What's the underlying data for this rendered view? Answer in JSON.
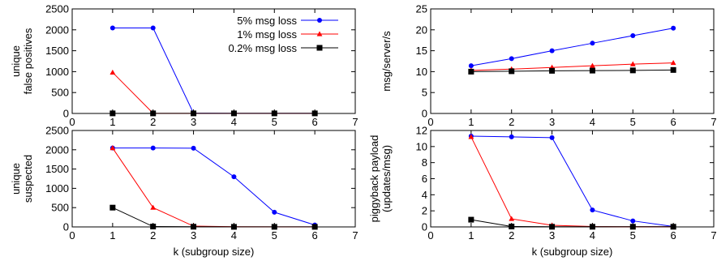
{
  "chart_data": [
    {
      "type": "line",
      "ylabel": [
        "unique",
        "false positives"
      ],
      "xlim": [
        0,
        7
      ],
      "ylim": [
        0,
        2500
      ],
      "xticks": [
        "0",
        "1",
        "2",
        "3",
        "4",
        "5",
        "6",
        "7"
      ],
      "yticks": [
        "0",
        "500",
        "1000",
        "1500",
        "2000",
        "2500"
      ],
      "x": [
        1,
        2,
        3,
        4,
        5,
        6
      ],
      "legend": {
        "placement": "top-right"
      },
      "series": [
        {
          "name": "5% msg loss",
          "color": "#0000ff",
          "marker": "circle",
          "values": [
            2045,
            2045,
            5,
            2,
            2,
            2
          ]
        },
        {
          "name": "1% msg loss",
          "color": "#ff0000",
          "marker": "triangle",
          "values": [
            980,
            5,
            2,
            2,
            2,
            2
          ]
        },
        {
          "name": "0.2% msg loss",
          "color": "#000000",
          "marker": "square",
          "values": [
            2,
            2,
            2,
            2,
            2,
            2
          ]
        }
      ]
    },
    {
      "type": "line",
      "ylabel": [
        "msg/server/s"
      ],
      "xlim": [
        0,
        7
      ],
      "ylim": [
        0,
        25
      ],
      "xticks": [
        "0",
        "1",
        "2",
        "3",
        "4",
        "5",
        "6",
        "7"
      ],
      "yticks": [
        "0",
        "5",
        "10",
        "15",
        "20",
        "25"
      ],
      "x": [
        1,
        2,
        3,
        4,
        5,
        6
      ],
      "series": [
        {
          "color": "#0000ff",
          "marker": "circle",
          "values": [
            11.4,
            13.1,
            15.0,
            16.8,
            18.6,
            20.4
          ]
        },
        {
          "color": "#ff0000",
          "marker": "triangle",
          "values": [
            10.3,
            10.6,
            11.0,
            11.4,
            11.8,
            12.1
          ]
        },
        {
          "color": "#000000",
          "marker": "square",
          "values": [
            10.0,
            10.1,
            10.2,
            10.25,
            10.3,
            10.4
          ]
        }
      ]
    },
    {
      "type": "line",
      "ylabel": [
        "unique",
        "suspected"
      ],
      "xlabel": "k (subgroup size)",
      "xlim": [
        0,
        7
      ],
      "ylim": [
        0,
        2500
      ],
      "xticks": [
        "0",
        "1",
        "2",
        "3",
        "4",
        "5",
        "6",
        "7"
      ],
      "yticks": [
        "0",
        "500",
        "1000",
        "1500",
        "2000",
        "2500"
      ],
      "x": [
        1,
        2,
        3,
        4,
        5,
        6
      ],
      "series": [
        {
          "color": "#0000ff",
          "marker": "circle",
          "values": [
            2045,
            2045,
            2040,
            1300,
            380,
            50
          ]
        },
        {
          "color": "#ff0000",
          "marker": "triangle",
          "values": [
            2045,
            500,
            20,
            5,
            2,
            2
          ]
        },
        {
          "color": "#000000",
          "marker": "square",
          "values": [
            500,
            10,
            5,
            2,
            2,
            2
          ]
        }
      ]
    },
    {
      "type": "line",
      "ylabel": [
        "piggyback payload",
        "(updates/msg)"
      ],
      "xlabel": "k (subgroup size)",
      "xlim": [
        0,
        7
      ],
      "ylim": [
        0,
        12
      ],
      "xticks": [
        "0",
        "1",
        "2",
        "3",
        "4",
        "5",
        "6",
        "7"
      ],
      "yticks": [
        "0",
        "2",
        "4",
        "6",
        "8",
        "10",
        "12"
      ],
      "x": [
        1,
        2,
        3,
        4,
        5,
        6
      ],
      "series": [
        {
          "color": "#0000ff",
          "marker": "circle",
          "values": [
            11.3,
            11.2,
            11.1,
            2.1,
            0.75,
            0.05
          ]
        },
        {
          "color": "#ff0000",
          "marker": "triangle",
          "values": [
            11.2,
            1.0,
            0.2,
            0.05,
            0.02,
            0.02
          ]
        },
        {
          "color": "#000000",
          "marker": "square",
          "values": [
            0.9,
            0.05,
            0.02,
            0.02,
            0.02,
            0.02
          ]
        }
      ]
    }
  ]
}
